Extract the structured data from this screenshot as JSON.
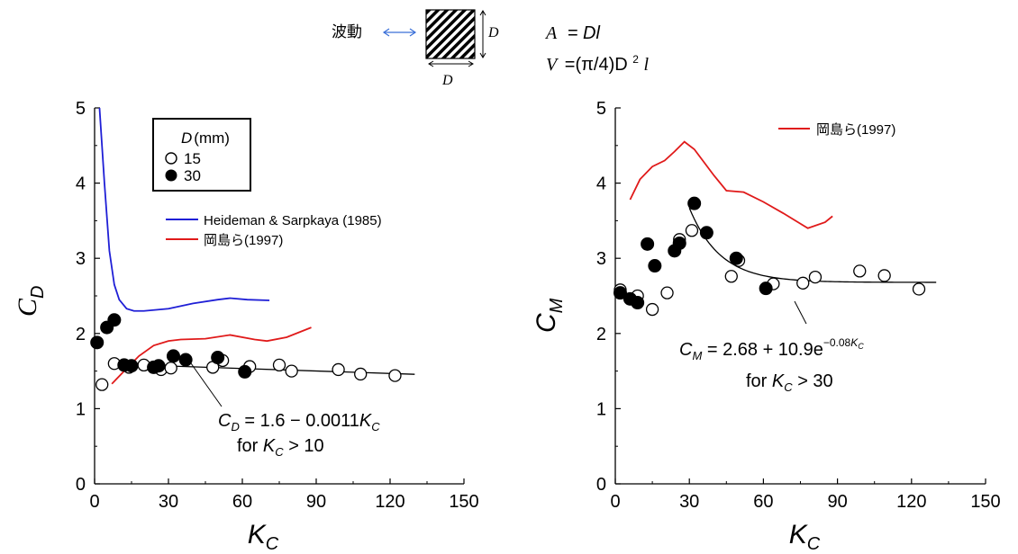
{
  "header": {
    "wave_label": "波動",
    "dim_label": "D",
    "formula_a_lhs": "A",
    "formula_a_rhs": "= Dl",
    "formula_v_lhs": "V",
    "formula_v_rhs": "=(π/4)D",
    "formula_v_exp": "2",
    "formula_v_tail": "l"
  },
  "colors": {
    "heideman": "#1f1fd6",
    "okajima": "#e01a1a",
    "fit": "#000000",
    "wave_arrow": "#3a6fd8"
  },
  "chart_data": [
    {
      "type": "scatter",
      "xlabel": "K",
      "xlabel_sub": "C",
      "ylabel": "C",
      "ylabel_sub": "D",
      "xlim": [
        0,
        150
      ],
      "ylim": [
        0,
        5
      ],
      "xticks": [
        "0",
        "30",
        "60",
        "90",
        "120",
        "150"
      ],
      "yticks": [
        "0",
        "1",
        "2",
        "3",
        "4",
        "5"
      ],
      "legend_box": {
        "title": "D",
        "title_unit": "(mm)",
        "entries": [
          "15",
          "30"
        ]
      },
      "series": [
        {
          "name": "15",
          "marker": "open",
          "points": [
            [
              3,
              1.32
            ],
            [
              8,
              1.6
            ],
            [
              14,
              1.55
            ],
            [
              20,
              1.58
            ],
            [
              27,
              1.52
            ],
            [
              31,
              1.54
            ],
            [
              48,
              1.55
            ],
            [
              52,
              1.64
            ],
            [
              63,
              1.56
            ],
            [
              75,
              1.58
            ],
            [
              80,
              1.5
            ],
            [
              99,
              1.52
            ],
            [
              108,
              1.46
            ],
            [
              122,
              1.44
            ]
          ]
        },
        {
          "name": "30",
          "marker": "filled",
          "points": [
            [
              1,
              1.88
            ],
            [
              5,
              2.08
            ],
            [
              8,
              2.18
            ],
            [
              12,
              1.58
            ],
            [
              15,
              1.57
            ],
            [
              24,
              1.55
            ],
            [
              26,
              1.57
            ],
            [
              32,
              1.7
            ],
            [
              37,
              1.65
            ],
            [
              50,
              1.68
            ],
            [
              61,
              1.49
            ]
          ]
        },
        {
          "name": "Heideman & Sarpkaya (1985)",
          "marker": "line",
          "color": "#1f1fd6",
          "points": [
            [
              2,
              5.0
            ],
            [
              4,
              4.0
            ],
            [
              6,
              3.1
            ],
            [
              8,
              2.65
            ],
            [
              10,
              2.45
            ],
            [
              13,
              2.33
            ],
            [
              16,
              2.3
            ],
            [
              20,
              2.3
            ],
            [
              30,
              2.33
            ],
            [
              40,
              2.4
            ],
            [
              50,
              2.45
            ],
            [
              55,
              2.47
            ],
            [
              62,
              2.45
            ],
            [
              71,
              2.44
            ]
          ]
        },
        {
          "name": "岡島ら(1997)",
          "marker": "line",
          "color": "#e01a1a",
          "points": [
            [
              7,
              1.33
            ],
            [
              12,
              1.5
            ],
            [
              18,
              1.7
            ],
            [
              24,
              1.84
            ],
            [
              30,
              1.9
            ],
            [
              35,
              1.92
            ],
            [
              45,
              1.93
            ],
            [
              55,
              1.98
            ],
            [
              65,
              1.92
            ],
            [
              70,
              1.9
            ],
            [
              78,
              1.95
            ],
            [
              88,
              2.08
            ]
          ]
        },
        {
          "name": "fit",
          "marker": "line",
          "color": "#000000",
          "points": [
            [
              10,
              1.589
            ],
            [
              130,
              1.457
            ]
          ]
        }
      ],
      "annotation": {
        "line1_prefix": "C",
        "line1_sub": "D",
        "line1_text": " = 1.6 − 0.0011",
        "line1_k": "K",
        "line1_k_sub": "C",
        "line2_text": "for ",
        "line2_k": "K",
        "line2_k_sub": "C",
        "line2_tail": " > 10"
      }
    },
    {
      "type": "scatter",
      "xlabel": "K",
      "xlabel_sub": "C",
      "ylabel": "C",
      "ylabel_sub": "M",
      "xlim": [
        0,
        150
      ],
      "ylim": [
        0,
        5
      ],
      "xticks": [
        "0",
        "30",
        "60",
        "90",
        "120",
        "150"
      ],
      "yticks": [
        "0",
        "1",
        "2",
        "3",
        "4",
        "5"
      ],
      "series": [
        {
          "name": "15",
          "marker": "open",
          "points": [
            [
              2,
              2.58
            ],
            [
              9,
              2.5
            ],
            [
              15,
              2.32
            ],
            [
              21,
              2.54
            ],
            [
              26,
              3.25
            ],
            [
              31,
              3.37
            ],
            [
              47,
              2.76
            ],
            [
              50,
              2.97
            ],
            [
              64,
              2.66
            ],
            [
              76,
              2.67
            ],
            [
              81,
              2.75
            ],
            [
              99,
              2.83
            ],
            [
              109,
              2.77
            ],
            [
              123,
              2.59
            ]
          ]
        },
        {
          "name": "30",
          "marker": "filled",
          "points": [
            [
              2,
              2.54
            ],
            [
              6,
              2.46
            ],
            [
              9,
              2.41
            ],
            [
              13,
              3.19
            ],
            [
              16,
              2.9
            ],
            [
              24,
              3.1
            ],
            [
              26,
              3.2
            ],
            [
              32,
              3.73
            ],
            [
              37,
              3.34
            ],
            [
              49,
              3.0
            ],
            [
              61,
              2.6
            ]
          ]
        },
        {
          "name": "岡島ら(1997)",
          "marker": "line",
          "color": "#e01a1a",
          "points": [
            [
              6,
              3.78
            ],
            [
              10,
              4.05
            ],
            [
              15,
              4.22
            ],
            [
              20,
              4.3
            ],
            [
              24,
              4.42
            ],
            [
              28,
              4.55
            ],
            [
              32,
              4.45
            ],
            [
              40,
              4.1
            ],
            [
              45,
              3.9
            ],
            [
              52,
              3.88
            ],
            [
              60,
              3.75
            ],
            [
              68,
              3.6
            ],
            [
              75,
              3.46
            ],
            [
              78,
              3.4
            ],
            [
              85,
              3.48
            ],
            [
              88,
              3.56
            ]
          ]
        },
        {
          "name": "fit",
          "marker": "fit-exp",
          "color": "#000000",
          "range": [
            30,
            130
          ]
        }
      ],
      "legend": {
        "entry": "岡島ら(1997)"
      },
      "annotation": {
        "line1_prefix": "C",
        "line1_sub": "M",
        "line1_text": " = 2.68 + 10.9e",
        "line1_exp": "−0.08",
        "line1_exp_k": "K",
        "line1_exp_k_sub": "C",
        "line2_text": "for ",
        "line2_k": "K",
        "line2_k_sub": "C",
        "line2_tail": " > 30"
      }
    }
  ]
}
